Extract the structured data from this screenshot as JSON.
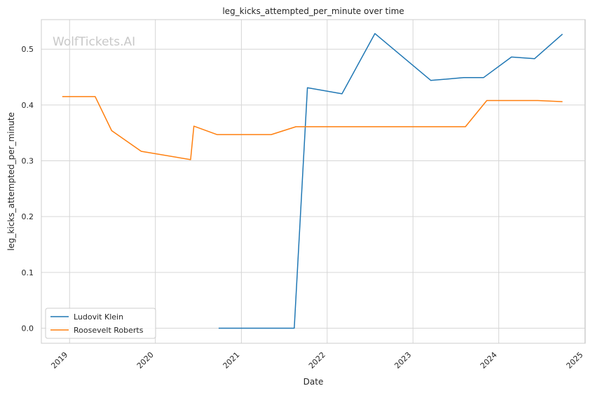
{
  "chart_data": {
    "type": "line",
    "title": "leg_kicks_attempted_per_minute over time",
    "xlabel": "Date",
    "ylabel": "leg_kicks_attempted_per_minute",
    "watermark": "WolfTickets.AI",
    "x_ticks": [
      "2019",
      "2020",
      "2021",
      "2022",
      "2023",
      "2024",
      "2025"
    ],
    "y_ticks": [
      "0.0",
      "0.1",
      "0.2",
      "0.3",
      "0.4",
      "0.5"
    ],
    "ylim": [
      -0.027,
      0.553
    ],
    "xlim": [
      "2018-09-03",
      "2025-01-03"
    ],
    "grid": true,
    "legend_position": "lower-left",
    "series": [
      {
        "name": "Ludovit Klein",
        "color": "#1f77b4",
        "points": [
          [
            "2020-09-26",
            0.0
          ],
          [
            "2021-08-14",
            0.0
          ],
          [
            "2021-10-09",
            0.431
          ],
          [
            "2022-03-05",
            0.42
          ],
          [
            "2022-07-23",
            0.528
          ],
          [
            "2023-03-18",
            0.444
          ],
          [
            "2023-08-05",
            0.449
          ],
          [
            "2023-10-28",
            0.449
          ],
          [
            "2024-02-24",
            0.486
          ],
          [
            "2024-06-01",
            0.483
          ],
          [
            "2024-09-28",
            0.527
          ]
        ]
      },
      {
        "name": "Roosevelt Roberts",
        "color": "#ff7f0e",
        "points": [
          [
            "2018-12-01",
            0.415
          ],
          [
            "2019-04-20",
            0.415
          ],
          [
            "2019-06-29",
            0.354
          ],
          [
            "2019-11-02",
            0.317
          ],
          [
            "2020-05-30",
            0.302
          ],
          [
            "2020-06-13",
            0.362
          ],
          [
            "2020-09-19",
            0.347
          ],
          [
            "2021-05-08",
            0.347
          ],
          [
            "2021-08-21",
            0.361
          ],
          [
            "2023-08-12",
            0.361
          ],
          [
            "2023-11-11",
            0.408
          ],
          [
            "2024-06-15",
            0.408
          ],
          [
            "2024-09-28",
            0.406
          ]
        ]
      }
    ]
  }
}
